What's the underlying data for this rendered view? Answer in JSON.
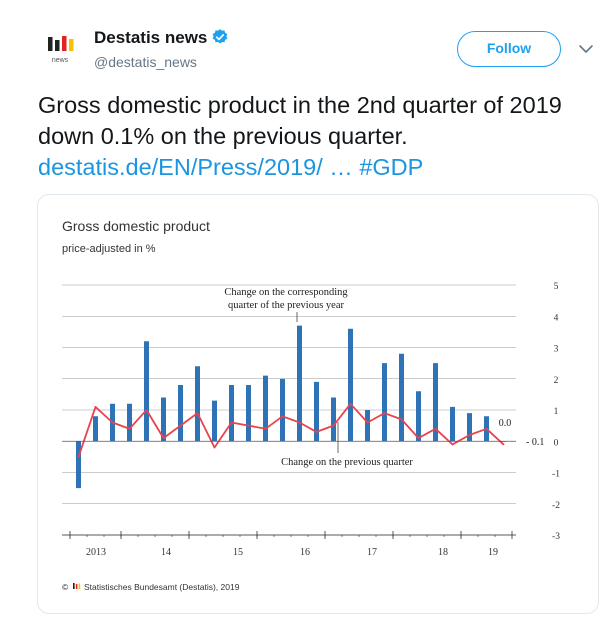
{
  "account": {
    "name": "Destatis news",
    "handle": "@destatis_news",
    "avatar_label": "news",
    "avatar_colors": [
      "#222222",
      "#e3231c",
      "#f5c400"
    ]
  },
  "follow_label": "Follow",
  "tweet": {
    "text_line": "Gross domestic product in the 2nd quarter of 2019 down 0.1% on the previous quarter.",
    "link": "destatis.de/EN/Press/2019/ …",
    "hashtag": "#GDP"
  },
  "colors": {
    "accent": "#1da1f2",
    "link": "#1b95e0",
    "bar": "#2f73b7",
    "line": "#e8434e"
  },
  "chart_data": {
    "type": "bar",
    "title": "Gross domestic product",
    "subtitle": "price-adjusted in %",
    "ylim": [
      -3,
      5
    ],
    "yticks": [
      5,
      4,
      3,
      2,
      1,
      0,
      -1,
      -2,
      -3
    ],
    "grid": true,
    "year_labels": [
      "2013",
      "14",
      "15",
      "16",
      "17",
      "18",
      "19"
    ],
    "annotations": {
      "bars_label_line1": "Change on the corresponding",
      "bars_label_line2": "quarter of the previous year",
      "line_label": "Change on the previous quarter",
      "last_bar_value": "0.0",
      "last_line_value": "- 0.1"
    },
    "series": [
      {
        "type": "bar",
        "values": [
          -1.5,
          0.8,
          1.2,
          1.2,
          3.2,
          1.4,
          1.8,
          2.4,
          1.3,
          1.8,
          1.8,
          2.1,
          2.0,
          3.7,
          1.9,
          1.4,
          3.6,
          1.0,
          2.5,
          2.8,
          1.6,
          2.5,
          1.1,
          0.9,
          0.8,
          0.0
        ]
      },
      {
        "type": "line",
        "values": [
          -0.5,
          1.1,
          0.6,
          0.4,
          1.0,
          0.1,
          0.5,
          0.9,
          -0.2,
          0.6,
          0.5,
          0.4,
          0.8,
          0.6,
          0.3,
          0.5,
          1.2,
          0.6,
          0.9,
          0.7,
          0.1,
          0.4,
          -0.1,
          0.2,
          0.4,
          -0.1
        ]
      }
    ],
    "source": "© ",
    "source_text": "Statistisches Bundesamt (Destatis), 2019"
  }
}
